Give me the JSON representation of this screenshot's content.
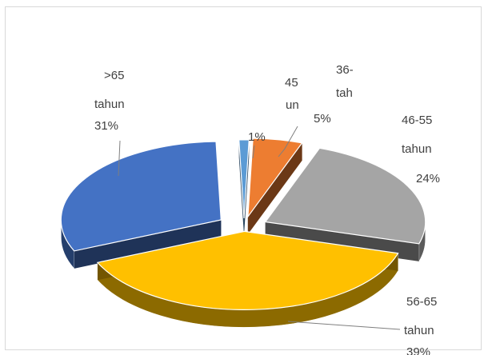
{
  "chart_data": {
    "type": "pie",
    "style": "3d-exploded",
    "title": "",
    "slices": [
      {
        "category": "1%",
        "label_lines": [
          "1%"
        ],
        "value": 1,
        "color": "#5b9bd5"
      },
      {
        "category": "36-45 tahun",
        "label_lines": [
          "45",
          "un",
          "36-",
          "tah",
          "5%"
        ],
        "value": 5,
        "color": "#ed7d31"
      },
      {
        "category": "46-55 tahun",
        "label_lines": [
          "46-55",
          "tahun",
          "24%"
        ],
        "value": 24,
        "color": "#a5a5a5"
      },
      {
        "category": "56-65 tahun",
        "label_lines": [
          "56-65",
          "tahun",
          "39%"
        ],
        "value": 39,
        "color": "#ffc000"
      },
      {
        "category": ">65 tahun",
        "label_lines": [
          ">65",
          "tahun",
          "31%"
        ],
        "value": 31,
        "color": "#4472c4"
      }
    ]
  }
}
